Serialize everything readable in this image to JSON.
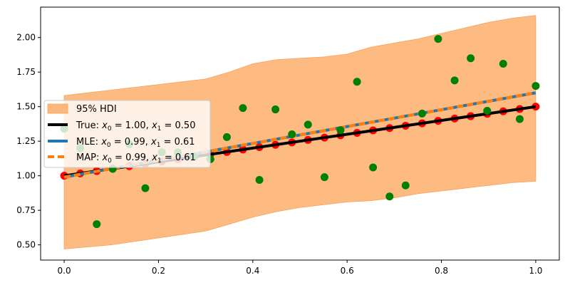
{
  "chart_data": {
    "type": "scatter",
    "xlim": [
      -0.05,
      1.05
    ],
    "ylim": [
      0.39,
      2.22
    ],
    "xticks": [
      "0.0",
      "0.2",
      "0.4",
      "0.6",
      "0.8",
      "1.0"
    ],
    "yticks": [
      "0.50",
      "0.75",
      "1.00",
      "1.25",
      "1.50",
      "1.75",
      "2.00"
    ],
    "grid": false,
    "legend_position": "center-left",
    "hdi_band": {
      "name": "95% HDI",
      "color": "#fdb77a",
      "x": [
        0.0,
        0.1,
        0.2,
        0.3,
        0.35,
        0.4,
        0.45,
        0.5,
        0.55,
        0.6,
        0.65,
        0.7,
        0.75,
        0.8,
        0.85,
        0.9,
        0.95,
        1.0
      ],
      "lower": [
        0.47,
        0.5,
        0.55,
        0.6,
        0.65,
        0.7,
        0.74,
        0.77,
        0.79,
        0.81,
        0.82,
        0.84,
        0.87,
        0.89,
        0.91,
        0.93,
        0.95,
        0.96
      ],
      "upper": [
        1.58,
        1.62,
        1.66,
        1.7,
        1.75,
        1.81,
        1.84,
        1.85,
        1.86,
        1.88,
        1.93,
        1.96,
        1.99,
        2.03,
        2.07,
        2.11,
        2.14,
        2.16
      ]
    },
    "observed": {
      "color": "#008000",
      "x": [
        0.0,
        0.034,
        0.069,
        0.103,
        0.138,
        0.172,
        0.207,
        0.241,
        0.276,
        0.31,
        0.345,
        0.379,
        0.414,
        0.448,
        0.483,
        0.517,
        0.552,
        0.586,
        0.621,
        0.655,
        0.69,
        0.724,
        0.759,
        0.793,
        0.828,
        0.862,
        0.897,
        0.931,
        0.966,
        1.0
      ],
      "y": [
        1.34,
        1.2,
        0.65,
        1.05,
        1.23,
        0.91,
        1.17,
        1.17,
        1.14,
        1.12,
        1.28,
        1.49,
        0.97,
        1.48,
        1.3,
        1.37,
        0.99,
        1.33,
        1.68,
        1.06,
        0.85,
        0.93,
        1.45,
        1.99,
        1.69,
        1.85,
        1.47,
        1.81,
        1.41,
        1.65
      ]
    },
    "true_points": {
      "color": "#ff0000",
      "x": [
        0.0,
        0.034,
        0.069,
        0.103,
        0.138,
        0.172,
        0.207,
        0.241,
        0.276,
        0.31,
        0.345,
        0.379,
        0.414,
        0.448,
        0.483,
        0.517,
        0.552,
        0.586,
        0.621,
        0.655,
        0.69,
        0.724,
        0.759,
        0.793,
        0.828,
        0.862,
        0.897,
        0.931,
        0.966,
        1.0
      ],
      "y": [
        1.0,
        1.017,
        1.034,
        1.052,
        1.069,
        1.086,
        1.103,
        1.121,
        1.138,
        1.155,
        1.172,
        1.19,
        1.207,
        1.224,
        1.241,
        1.259,
        1.276,
        1.293,
        1.31,
        1.328,
        1.345,
        1.362,
        1.379,
        1.397,
        1.414,
        1.431,
        1.448,
        1.466,
        1.483,
        1.5
      ]
    },
    "lines": [
      {
        "name": "True: x0 = 1.00, x1 = 0.50",
        "intercept": 1.0,
        "slope": 0.5,
        "color": "#000000",
        "style": "solid"
      },
      {
        "name": "MLE: x0 = 0.99, x1 = 0.61",
        "intercept": 0.99,
        "slope": 0.61,
        "color": "#1f77b4",
        "style": "solid"
      },
      {
        "name": "MAP: x0 = 0.99, x1 = 0.61",
        "intercept": 0.99,
        "slope": 0.61,
        "color": "#ff7f0e",
        "style": "dashed"
      }
    ]
  },
  "legend": {
    "hdi_label": "95% HDI",
    "true": {
      "prefix": "True: ",
      "x0_symbol": "x",
      "x0_sub": "0",
      "x0_value": " = 1.00, ",
      "x1_symbol": "x",
      "x1_sub": "1",
      "x1_value": " = 0.50"
    },
    "mle": {
      "prefix": "MLE: ",
      "x0_symbol": "x",
      "x0_sub": "0",
      "x0_value": " = 0.99, ",
      "x1_symbol": "x",
      "x1_sub": "1",
      "x1_value": " = 0.61"
    },
    "map": {
      "prefix": "MAP: ",
      "x0_symbol": "x",
      "x0_sub": "0",
      "x0_value": " = 0.99, ",
      "x1_symbol": "x",
      "x1_sub": "1",
      "x1_value": " = 0.61"
    }
  }
}
